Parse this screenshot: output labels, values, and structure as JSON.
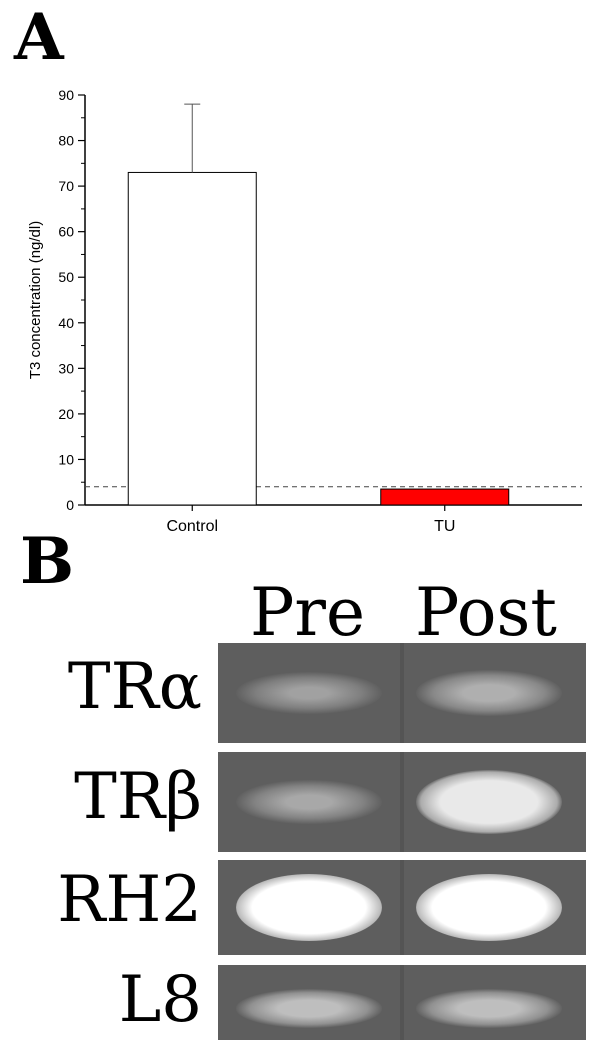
{
  "panels": {
    "a_label": "A",
    "b_label": "B"
  },
  "chart_data": {
    "type": "bar",
    "ylabel": "T3 concentration (ng/dl)",
    "xlabel": "",
    "ylim": [
      0,
      90
    ],
    "yticks": [
      0,
      10,
      20,
      30,
      40,
      50,
      60,
      70,
      80,
      90
    ],
    "categories": [
      "Control",
      "TU"
    ],
    "values": [
      73,
      3.5
    ],
    "errors": [
      15,
      0
    ],
    "bar_colors": [
      "#ffffff",
      "#ff0000"
    ],
    "reference_line": {
      "value": 4,
      "style": "dashed"
    },
    "grid": false
  },
  "gel": {
    "lanes": [
      "Pre",
      "Post"
    ],
    "rows": [
      {
        "label": "TRα",
        "intensity": [
          0.35,
          0.45
        ]
      },
      {
        "label": "TRβ",
        "intensity": [
          0.4,
          0.85
        ]
      },
      {
        "label": "RH2",
        "intensity": [
          1.0,
          1.0
        ]
      },
      {
        "label": "L8",
        "intensity": [
          0.55,
          0.55
        ]
      }
    ]
  }
}
